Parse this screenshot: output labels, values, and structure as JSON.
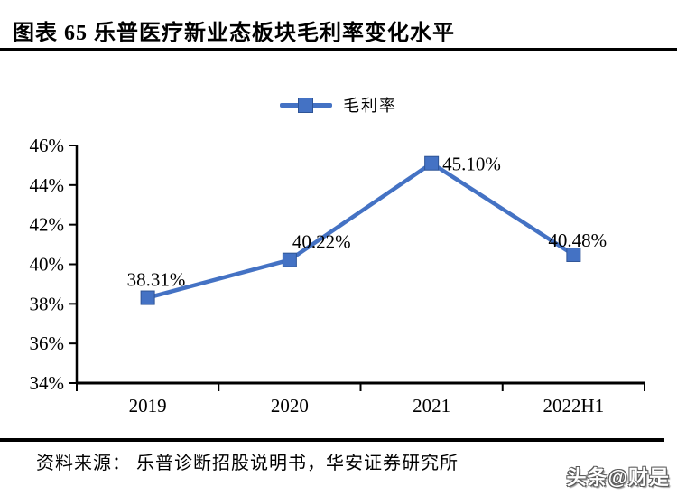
{
  "header": {
    "figure_title": "图表 65  乐普医疗新业态板块毛利率变化水平"
  },
  "legend": {
    "series_label": "毛利率",
    "marker_color": "#4472C4"
  },
  "chart_data": {
    "type": "line",
    "title": "乐普医疗新业态板块毛利率变化水平",
    "categories": [
      "2019",
      "2020",
      "2021",
      "2022H1"
    ],
    "series": [
      {
        "name": "毛利率",
        "values": [
          38.31,
          40.22,
          45.1,
          40.48
        ]
      }
    ],
    "data_labels": [
      "38.31%",
      "40.22%",
      "45.10%",
      "40.48%"
    ],
    "xlabel": "",
    "ylabel": "",
    "ylim": [
      34,
      46
    ],
    "ytick_step": 2,
    "ytick_labels": [
      "34%",
      "36%",
      "38%",
      "40%",
      "42%",
      "44%",
      "46%"
    ],
    "grid": false,
    "legend_position": "top",
    "line_color": "#4472C4",
    "marker_edge_color": "#2E5496",
    "axis_color": "#000000",
    "marker_shape": "square"
  },
  "footer": {
    "source_text": "资料来源：  乐普诊断招股说明书，华安证券研究所",
    "watermark": "头条@财是"
  }
}
